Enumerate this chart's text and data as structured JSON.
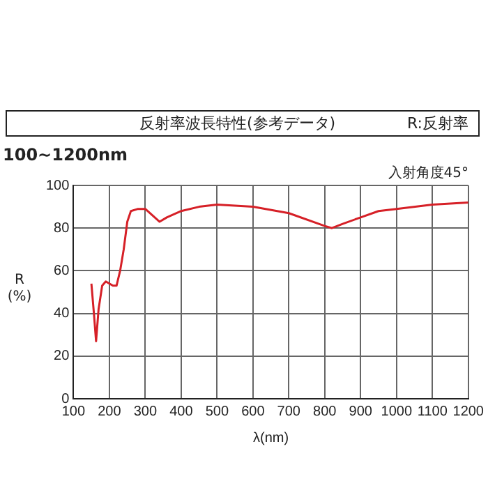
{
  "chart_data": {
    "type": "line",
    "title": "反射率波長特性(参考データ)",
    "subtitle": "100~1200nm",
    "xlabel": "λ(nm)",
    "ylabel": "R\n(%)",
    "annotations": [
      "R:反射率",
      "入射角度45°"
    ],
    "series": [
      {
        "color": "#d62027",
        "x": [
          150,
          157,
          163,
          170,
          180,
          190,
          200,
          210,
          220,
          230,
          240,
          250,
          260,
          280,
          300,
          320,
          340,
          360,
          400,
          450,
          500,
          600,
          700,
          800,
          820,
          850,
          900,
          950,
          1000,
          1100,
          1200
        ],
        "values": [
          54,
          40,
          27,
          42,
          53,
          55,
          54,
          53,
          53,
          60,
          70,
          83,
          88,
          89,
          89,
          86,
          83,
          85,
          88,
          90,
          91,
          90,
          87,
          81,
          80,
          82,
          85,
          88,
          89,
          91,
          92
        ]
      }
    ],
    "xlim": [
      100,
      1200
    ],
    "xticks": [
      100,
      200,
      300,
      400,
      500,
      600,
      700,
      800,
      900,
      1000,
      1100,
      1200
    ],
    "ylim": [
      0,
      100
    ],
    "yticks": [
      0,
      20,
      40,
      60,
      80,
      100
    ],
    "grid": true,
    "legend": false,
    "marker": "none",
    "line_style": "solid"
  }
}
